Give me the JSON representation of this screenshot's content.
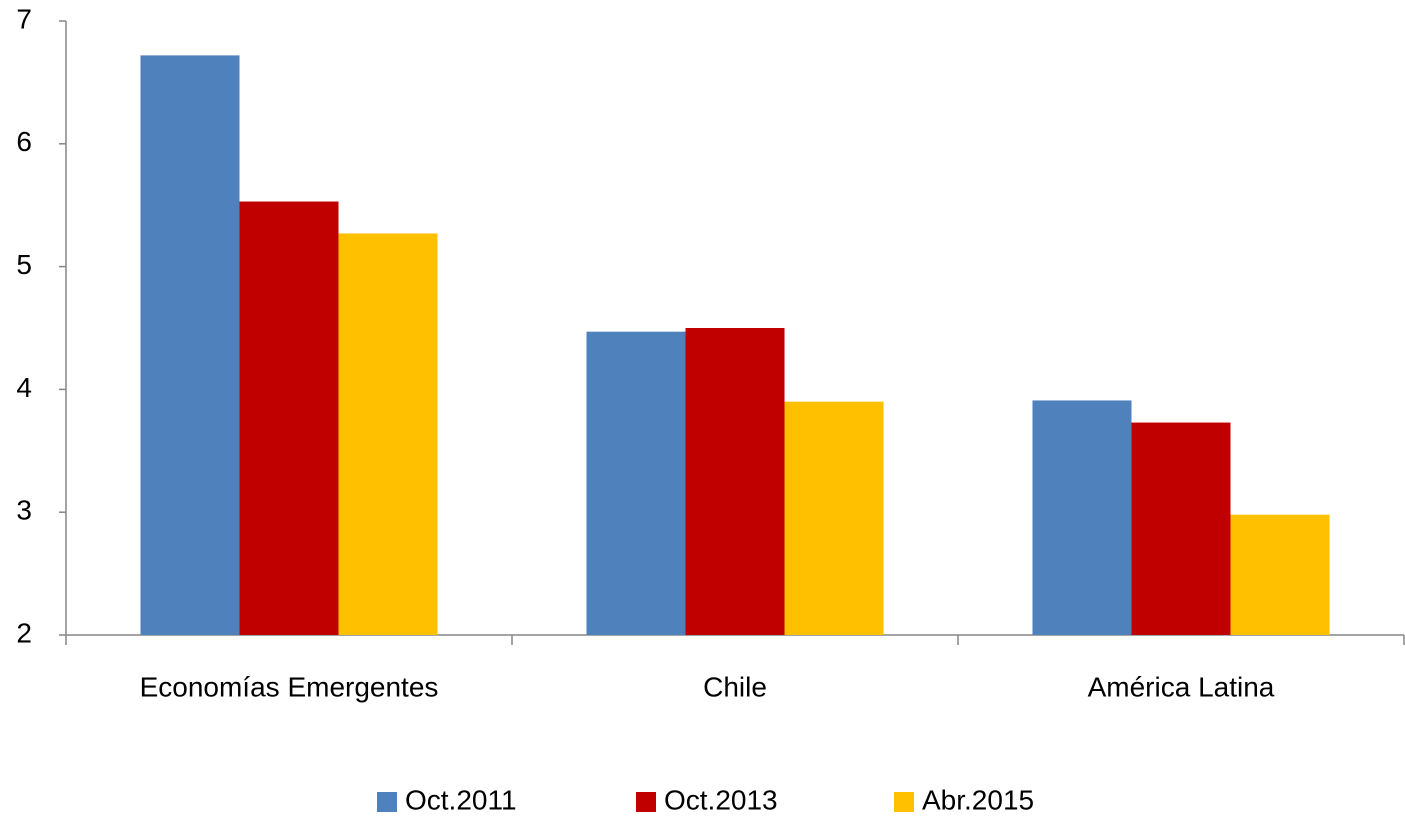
{
  "chart_data": {
    "type": "bar",
    "categories": [
      "Economías Emergentes",
      "Chile",
      "América Latina"
    ],
    "series": [
      {
        "name": "Oct.2011",
        "color": "#4f81bd",
        "values": [
          6.72,
          4.47,
          3.91
        ]
      },
      {
        "name": "Oct.2013",
        "color": "#c00000",
        "values": [
          5.53,
          4.5,
          3.73
        ]
      },
      {
        "name": "Abr.2015",
        "color": "#ffc000",
        "values": [
          5.27,
          3.9,
          2.98
        ]
      }
    ],
    "ylim": [
      2,
      7
    ],
    "yticks": [
      2,
      3,
      4,
      5,
      6,
      7
    ],
    "grid": false,
    "legend": "bottom"
  }
}
